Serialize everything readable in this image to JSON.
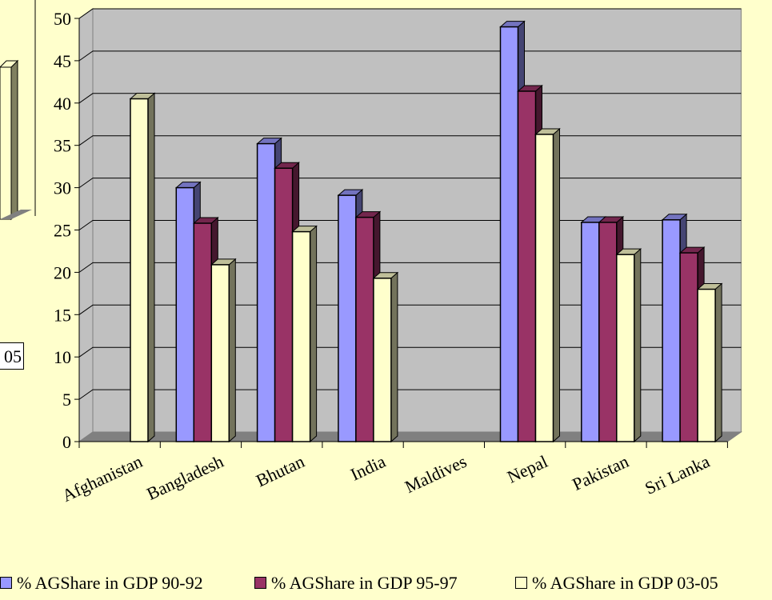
{
  "chart_data": {
    "type": "bar",
    "categories": [
      "Afghanistan",
      "Bangladesh",
      "Bhutan",
      "India",
      "Maldives",
      "Nepal",
      "Pakistan",
      "Sri Lanka"
    ],
    "series": [
      {
        "name": "% AGShare in GDP 90-92",
        "values": [
          null,
          30,
          35.2,
          29.1,
          null,
          49,
          25.9,
          26.2
        ],
        "color": "#9999ff"
      },
      {
        "name": "% AGShare in GDP 95-97",
        "values": [
          null,
          25.8,
          32.3,
          26.5,
          null,
          41.4,
          25.9,
          22.3
        ],
        "color": "#993366"
      },
      {
        "name": "% AGShare in GDP 03-05",
        "values": [
          40.5,
          20.9,
          24.8,
          19.3,
          null,
          36.3,
          22.1,
          18
        ],
        "color": "#ffffcc"
      }
    ],
    "ylim": [
      0,
      50
    ],
    "yticks": [
      "0",
      "5",
      "10",
      "15",
      "20",
      "25",
      "30",
      "35",
      "40",
      "45",
      "50"
    ],
    "grid": true,
    "legend_position": "bottom"
  },
  "partial_legend_fragment": "05",
  "colors": {
    "background": "#ffffcc",
    "plot_wall": "#c0c0c0",
    "floor": "#808080"
  }
}
